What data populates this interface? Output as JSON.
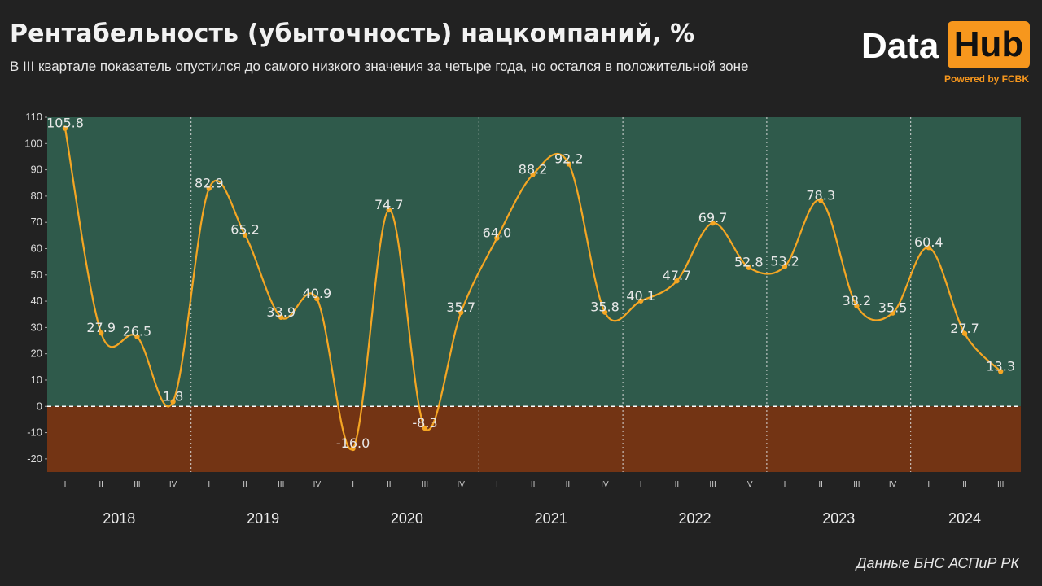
{
  "header": {
    "title": "Рентабельность (убыточность) нацкомпаний, %",
    "subtitle": "В III квартале показатель опустился до самого низкого значения за четыре года, но остался в положительной зоне"
  },
  "logo": {
    "data_text": "Data",
    "hub_text": "Hub",
    "powered_text": "Powered by FCBK"
  },
  "source": "Данные БНС АСПиР РК",
  "colors": {
    "background": "#222222",
    "positive_zone": "#2f5a4b",
    "negative_zone": "#733414",
    "line": "#f5a623",
    "accent": "#f7971d"
  },
  "chart_data": {
    "type": "line",
    "ylim": [
      -25,
      110
    ],
    "yticks": [
      110,
      100,
      90,
      80,
      70,
      60,
      50,
      40,
      30,
      20,
      10,
      0,
      -10,
      -20
    ],
    "years": [
      "2018",
      "2019",
      "2020",
      "2021",
      "2022",
      "2023",
      "2024"
    ],
    "quarter_labels": [
      "I",
      "II",
      "III",
      "IV"
    ],
    "points": [
      {
        "year": "2018",
        "quarter": "I",
        "value": 105.8,
        "label": "105.8"
      },
      {
        "year": "2018",
        "quarter": "II",
        "value": 27.9,
        "label": "27.9"
      },
      {
        "year": "2018",
        "quarter": "III",
        "value": 26.5,
        "label": "26.5"
      },
      {
        "year": "2018",
        "quarter": "IV",
        "value": 1.8,
        "label": "1.8"
      },
      {
        "year": "2019",
        "quarter": "I",
        "value": 82.9,
        "label": "82.9"
      },
      {
        "year": "2019",
        "quarter": "II",
        "value": 65.2,
        "label": "65.2"
      },
      {
        "year": "2019",
        "quarter": "III",
        "value": 33.9,
        "label": "33.9"
      },
      {
        "year": "2019",
        "quarter": "IV",
        "value": 40.9,
        "label": "40.9"
      },
      {
        "year": "2020",
        "quarter": "I",
        "value": -16.0,
        "label": "-16.0"
      },
      {
        "year": "2020",
        "quarter": "II",
        "value": 74.7,
        "label": "74.7"
      },
      {
        "year": "2020",
        "quarter": "III",
        "value": -8.3,
        "label": "-8.3"
      },
      {
        "year": "2020",
        "quarter": "IV",
        "value": 35.7,
        "label": "35.7"
      },
      {
        "year": "2021",
        "quarter": "I",
        "value": 64.0,
        "label": "64.0"
      },
      {
        "year": "2021",
        "quarter": "II",
        "value": 88.2,
        "label": "88.2"
      },
      {
        "year": "2021",
        "quarter": "III",
        "value": 92.2,
        "label": "92.2"
      },
      {
        "year": "2021",
        "quarter": "IV",
        "value": 35.8,
        "label": "35.8"
      },
      {
        "year": "2022",
        "quarter": "I",
        "value": 40.1,
        "label": "40.1"
      },
      {
        "year": "2022",
        "quarter": "II",
        "value": 47.7,
        "label": "47.7"
      },
      {
        "year": "2022",
        "quarter": "III",
        "value": 69.7,
        "label": "69.7"
      },
      {
        "year": "2022",
        "quarter": "IV",
        "value": 52.8,
        "label": "52.8"
      },
      {
        "year": "2023",
        "quarter": "I",
        "value": 53.2,
        "label": "53.2"
      },
      {
        "year": "2023",
        "quarter": "II",
        "value": 78.3,
        "label": "78.3"
      },
      {
        "year": "2023",
        "quarter": "III",
        "value": 38.2,
        "label": "38.2"
      },
      {
        "year": "2023",
        "quarter": "IV",
        "value": 35.5,
        "label": "35.5"
      },
      {
        "year": "2024",
        "quarter": "I",
        "value": 60.4,
        "label": "60.4"
      },
      {
        "year": "2024",
        "quarter": "II",
        "value": 27.7,
        "label": "27.7"
      },
      {
        "year": "2024",
        "quarter": "III",
        "value": 13.3,
        "label": "13.3"
      }
    ],
    "zero_line": "dashed",
    "year_separators": "dotted"
  }
}
